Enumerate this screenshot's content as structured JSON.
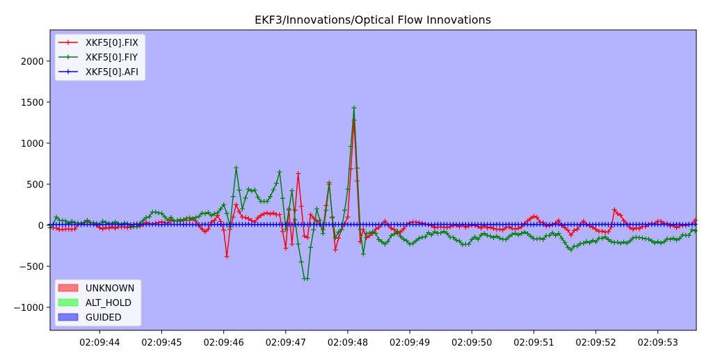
{
  "chart_data": {
    "type": "line",
    "title": "EKF3/Innovations/Optical Flow Innovations",
    "xlabel": "",
    "ylabel": "",
    "x_range": [
      "02:09:43.20",
      "02:09:53.62"
    ],
    "ylim": [
      -1280,
      2380
    ],
    "x_ticks": [
      "02:09:44",
      "02:09:45",
      "02:09:46",
      "02:09:47",
      "02:09:48",
      "02:09:49",
      "02:09:50",
      "02:09:51",
      "02:09:52",
      "02:09:53"
    ],
    "y_ticks": [
      -1000,
      -500,
      0,
      500,
      1000,
      1500,
      2000
    ],
    "grid": false,
    "background_mode": "GUIDED",
    "series": [
      {
        "name": "XKF5[0].FIX",
        "color": "#ff0000",
        "marker": "+",
        "anchors_time": [
          "02:09:43.20",
          "02:09:43.55",
          "02:09:43.80",
          "02:09:44.00",
          "02:09:44.40",
          "02:09:44.80",
          "02:09:45.20",
          "02:09:45.50",
          "02:09:45.70",
          "02:09:45.90",
          "02:09:46.00",
          "02:09:46.05",
          "02:09:46.10",
          "02:09:46.20",
          "02:09:46.30",
          "02:09:46.40",
          "02:09:46.50",
          "02:09:46.60",
          "02:09:46.70",
          "02:09:46.80",
          "02:09:46.90",
          "02:09:47.00",
          "02:09:47.05",
          "02:09:47.10",
          "02:09:47.20",
          "02:09:47.30",
          "02:09:47.35",
          "02:09:47.40",
          "02:09:47.50",
          "02:09:47.60",
          "02:09:47.70",
          "02:09:47.75",
          "02:09:47.80",
          "02:09:47.90",
          "02:09:48.00",
          "02:09:48.10",
          "02:09:48.20",
          "02:09:48.25",
          "02:09:48.30",
          "02:09:48.40",
          "02:09:48.60",
          "02:09:48.80",
          "02:09:49.00",
          "02:09:49.50",
          "02:09:50.00",
          "02:09:50.40",
          "02:09:50.80",
          "02:09:51.00",
          "02:09:51.20",
          "02:09:51.40",
          "02:09:51.60",
          "02:09:51.80",
          "02:09:52.00",
          "02:09:52.20",
          "02:09:52.25",
          "02:09:52.30",
          "02:09:52.60",
          "02:09:53.00",
          "02:09:53.30",
          "02:09:53.62"
        ],
        "anchors_value": [
          -30,
          -50,
          60,
          -30,
          -20,
          20,
          50,
          80,
          -80,
          120,
          -60,
          -380,
          -50,
          250,
          100,
          80,
          40,
          120,
          150,
          150,
          130,
          -280,
          200,
          -230,
          630,
          -130,
          -150,
          130,
          50,
          -50,
          520,
          90,
          -300,
          -50,
          100,
          1280,
          -200,
          -50,
          -150,
          -100,
          50,
          -100,
          30,
          -20,
          0,
          -50,
          -20,
          110,
          -10,
          60,
          -120,
          50,
          -50,
          -80,
          -20,
          190,
          -50,
          50,
          -30,
          50
        ],
        "noise_amplitude": 40
      },
      {
        "name": "XKF5[0].FIY",
        "color": "#008000",
        "marker": "+",
        "anchors_time": [
          "02:09:43.20",
          "02:09:43.30",
          "02:09:43.60",
          "02:09:43.90",
          "02:09:44.20",
          "02:09:44.60",
          "02:09:44.90",
          "02:09:45.20",
          "02:09:45.50",
          "02:09:45.70",
          "02:09:45.90",
          "02:09:46.00",
          "02:09:46.10",
          "02:09:46.20",
          "02:09:46.30",
          "02:09:46.40",
          "02:09:46.50",
          "02:09:46.60",
          "02:09:46.70",
          "02:09:46.80",
          "02:09:46.90",
          "02:09:47.00",
          "02:09:47.10",
          "02:09:47.20",
          "02:09:47.30",
          "02:09:47.35",
          "02:09:47.40",
          "02:09:47.50",
          "02:09:47.60",
          "02:09:47.70",
          "02:09:47.75",
          "02:09:47.80",
          "02:09:47.90",
          "02:09:48.00",
          "02:09:48.10",
          "02:09:48.20",
          "02:09:48.25",
          "02:09:48.30",
          "02:09:48.40",
          "02:09:48.60",
          "02:09:48.80",
          "02:09:49.00",
          "02:09:49.30",
          "02:09:49.60",
          "02:09:49.90",
          "02:09:50.20",
          "02:09:50.50",
          "02:09:50.80",
          "02:09:51.10",
          "02:09:51.40",
          "02:09:51.60",
          "02:09:51.80",
          "02:09:52.10",
          "02:09:52.40",
          "02:09:52.70",
          "02:09:53.00",
          "02:09:53.30",
          "02:09:53.62"
        ],
        "anchors_value": [
          -30,
          100,
          30,
          30,
          20,
          -20,
          160,
          50,
          80,
          140,
          150,
          250,
          -20,
          700,
          200,
          440,
          430,
          290,
          290,
          430,
          650,
          -50,
          420,
          -230,
          -650,
          -650,
          -270,
          200,
          -100,
          500,
          100,
          -150,
          -50,
          440,
          1430,
          -50,
          -350,
          -100,
          -80,
          -230,
          -70,
          -230,
          -90,
          -100,
          -230,
          -100,
          -170,
          -100,
          -160,
          -100,
          -300,
          -220,
          -160,
          -220,
          -150,
          -200,
          -180,
          -50
        ],
        "noise_amplitude": 60
      },
      {
        "name": "XKF5[0].AFI",
        "color": "#0000ff",
        "marker": "+",
        "anchors_time": [
          "02:09:43.20",
          "02:09:53.62"
        ],
        "anchors_value": [
          10,
          10
        ],
        "noise_amplitude": 4
      }
    ],
    "mode_legend": [
      {
        "name": "UNKNOWN",
        "color": "#ff0000"
      },
      {
        "name": "ALT_HOLD",
        "color": "#00ff00"
      },
      {
        "name": "GUIDED",
        "color": "#0000ff"
      }
    ]
  }
}
